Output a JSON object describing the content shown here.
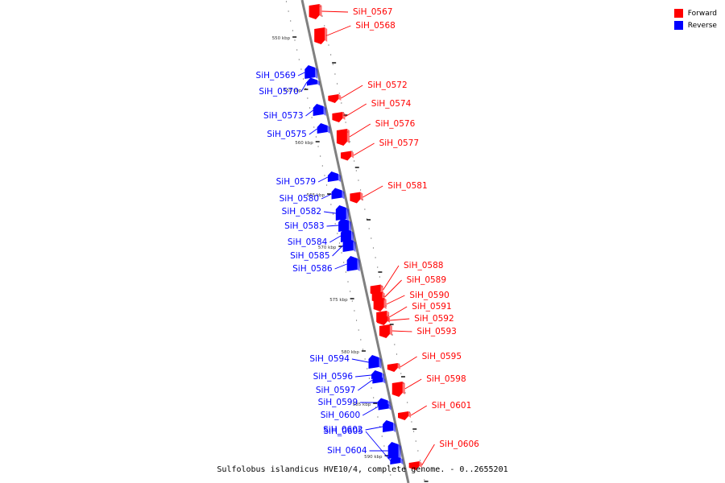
{
  "colors": {
    "forward": "#ff0000",
    "reverse": "#0000ff",
    "backbone": "#808080"
  },
  "legend": {
    "forward_label": "Forward",
    "reverse_label": "Reverse"
  },
  "caption": "Sulfolobus islandicus HVE10/4, complete genome. - 0..2655201",
  "ticks": [
    "550 kbp",
    "555 kbp",
    "560 kbp",
    "565 kbp",
    "570 kbp",
    "575 kbp",
    "580 kbp",
    "585 kbp",
    "590 kbp"
  ],
  "genes": [
    {
      "id": "SiH_0567",
      "strand": "forward"
    },
    {
      "id": "SiH_0568",
      "strand": "forward"
    },
    {
      "id": "SiH_0569",
      "strand": "reverse"
    },
    {
      "id": "SiH_0570",
      "strand": "reverse"
    },
    {
      "id": "SiH_0572",
      "strand": "forward"
    },
    {
      "id": "SiH_0573",
      "strand": "reverse"
    },
    {
      "id": "SiH_0574",
      "strand": "forward"
    },
    {
      "id": "SiH_0575",
      "strand": "reverse"
    },
    {
      "id": "SiH_0576",
      "strand": "forward"
    },
    {
      "id": "SiH_0577",
      "strand": "forward"
    },
    {
      "id": "SiH_0579",
      "strand": "reverse"
    },
    {
      "id": "SiH_0580",
      "strand": "reverse"
    },
    {
      "id": "SiH_0581",
      "strand": "forward"
    },
    {
      "id": "SiH_0582",
      "strand": "reverse"
    },
    {
      "id": "SiH_0583",
      "strand": "reverse"
    },
    {
      "id": "SiH_0584",
      "strand": "reverse"
    },
    {
      "id": "SiH_0585",
      "strand": "reverse"
    },
    {
      "id": "SiH_0586",
      "strand": "reverse"
    },
    {
      "id": "SiH_0588",
      "strand": "forward"
    },
    {
      "id": "SiH_0589",
      "strand": "forward"
    },
    {
      "id": "SiH_0590",
      "strand": "forward"
    },
    {
      "id": "SiH_0591",
      "strand": "forward"
    },
    {
      "id": "SiH_0592",
      "strand": "forward"
    },
    {
      "id": "SiH_0593",
      "strand": "forward"
    },
    {
      "id": "SiH_0594",
      "strand": "reverse"
    },
    {
      "id": "SiH_0595",
      "strand": "forward"
    },
    {
      "id": "SiH_0596",
      "strand": "reverse"
    },
    {
      "id": "SiH_0597",
      "strand": "reverse"
    },
    {
      "id": "SiH_0598",
      "strand": "forward"
    },
    {
      "id": "SiH_0599",
      "strand": "reverse"
    },
    {
      "id": "SiH_0600",
      "strand": "reverse"
    },
    {
      "id": "SiH_0601",
      "strand": "forward"
    },
    {
      "id": "SiH_0602",
      "strand": "reverse"
    },
    {
      "id": "SiH_0604",
      "strand": "reverse"
    },
    {
      "id": "SiH_0605",
      "strand": "reverse"
    },
    {
      "id": "SiH_0606",
      "strand": "forward"
    }
  ]
}
